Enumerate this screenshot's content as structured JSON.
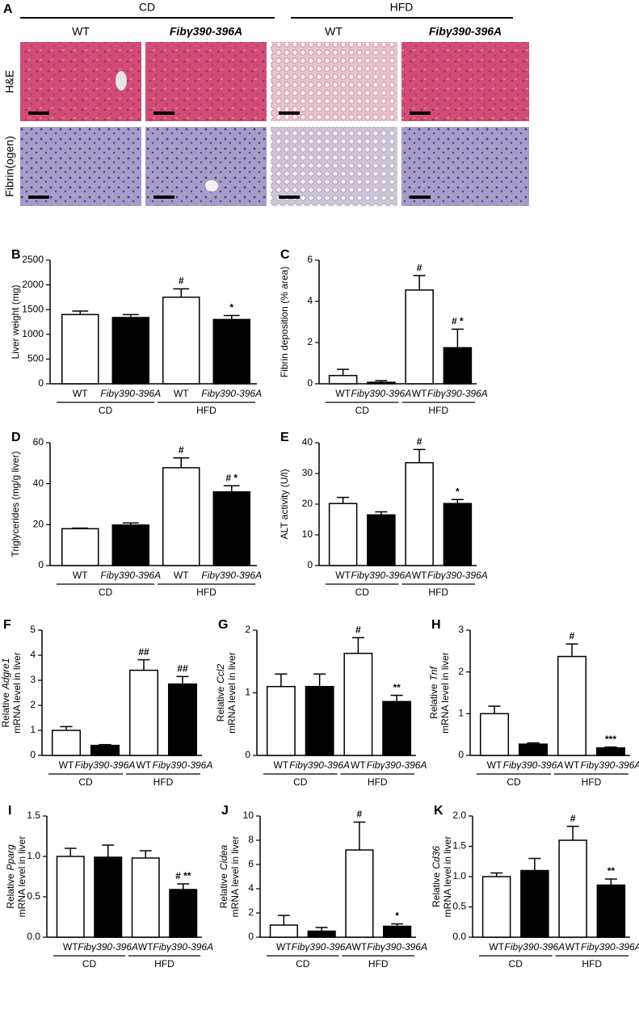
{
  "panel_a": {
    "letter": "A",
    "groups": [
      "CD",
      "HFD"
    ],
    "columns": [
      "WT",
      "Fibγ390-396A",
      "WT",
      "Fibγ390-396A"
    ],
    "rows": [
      "H&E",
      "Fibrin(ogen)"
    ]
  },
  "chart_data": [
    {
      "type": "bar",
      "panel": "B",
      "ylabel": "Liver weight (mg)",
      "categories": [
        "WT",
        "Fibγ390-396A",
        "WT",
        "Fibγ390-396A"
      ],
      "groups": [
        "CD",
        "HFD"
      ],
      "values": [
        1400,
        1340,
        1750,
        1300
      ],
      "errors": [
        70,
        60,
        170,
        80
      ],
      "annotations": [
        null,
        null,
        "#",
        "*"
      ],
      "colors": [
        "#ffffff",
        "#000000",
        "#ffffff",
        "#000000"
      ],
      "ylim": [
        0,
        2500
      ],
      "yticks": [
        0,
        500,
        1000,
        1500,
        2000,
        2500
      ]
    },
    {
      "type": "bar",
      "panel": "C",
      "ylabel": "Fibrin deposition (% area)",
      "categories": [
        "WT",
        "Fibγ390-396A",
        "WT",
        "Fibγ390-396A"
      ],
      "groups": [
        "CD",
        "HFD"
      ],
      "values": [
        0.4,
        0.07,
        4.55,
        1.75
      ],
      "errors": [
        0.3,
        0.08,
        0.7,
        0.9
      ],
      "annotations": [
        null,
        null,
        "#",
        "# *"
      ],
      "colors": [
        "#ffffff",
        "#000000",
        "#ffffff",
        "#000000"
      ],
      "ylim": [
        0,
        6
      ],
      "yticks": [
        0,
        2,
        4,
        6
      ]
    },
    {
      "type": "bar",
      "panel": "D",
      "ylabel": "Triglycerides (mg/g liver)",
      "categories": [
        "WT",
        "Fibγ390-396A",
        "WT",
        "Fibγ390-396A"
      ],
      "groups": [
        "CD",
        "HFD"
      ],
      "values": [
        18,
        19.8,
        47.8,
        36
      ],
      "errors": [
        0.3,
        1,
        4.8,
        3
      ],
      "annotations": [
        null,
        null,
        "#",
        "# *"
      ],
      "colors": [
        "#ffffff",
        "#000000",
        "#ffffff",
        "#000000"
      ],
      "ylim": [
        0,
        60
      ],
      "yticks": [
        0,
        20,
        40,
        60
      ]
    },
    {
      "type": "bar",
      "panel": "E",
      "ylabel": "ALT activity (U/l)",
      "categories": [
        "WT",
        "Fibγ390-396A",
        "WT",
        "Fibγ390-396A"
      ],
      "groups": [
        "CD",
        "HFD"
      ],
      "values": [
        20.2,
        16.5,
        33.5,
        20.2
      ],
      "errors": [
        2,
        1,
        4.3,
        1.3
      ],
      "annotations": [
        null,
        null,
        "#",
        "*"
      ],
      "colors": [
        "#ffffff",
        "#000000",
        "#ffffff",
        "#000000"
      ],
      "ylim": [
        0,
        40
      ],
      "yticks": [
        0,
        10,
        20,
        30,
        40
      ]
    },
    {
      "type": "bar",
      "panel": "F",
      "ylabel": "Relative",
      "ylabel_gene": "Adgre1",
      "ylabel_2": "mRNA level in liver",
      "categories": [
        "WT",
        "Fibγ390-396A",
        "WT",
        "Fibγ390-396A"
      ],
      "groups": [
        "CD",
        "HFD"
      ],
      "values": [
        1.0,
        0.4,
        3.4,
        2.85
      ],
      "errors": [
        0.15,
        0.03,
        0.42,
        0.3
      ],
      "annotations": [
        null,
        null,
        "##",
        "##"
      ],
      "colors": [
        "#ffffff",
        "#000000",
        "#ffffff",
        "#000000"
      ],
      "ylim": [
        0,
        5
      ],
      "yticks": [
        0,
        1,
        2,
        3,
        4,
        5
      ]
    },
    {
      "type": "bar",
      "panel": "G",
      "ylabel": "Relative",
      "ylabel_gene": "Ccl2",
      "ylabel_2": "mRNA level in liver",
      "categories": [
        "WT",
        "Fibγ390-396A",
        "WT",
        "Fibγ390-396A"
      ],
      "groups": [
        "CD",
        "HFD"
      ],
      "values": [
        1.1,
        1.1,
        1.63,
        0.86
      ],
      "errors": [
        0.2,
        0.2,
        0.25,
        0.1
      ],
      "annotations": [
        null,
        null,
        "#",
        "**"
      ],
      "colors": [
        "#ffffff",
        "#000000",
        "#ffffff",
        "#000000"
      ],
      "ylim": [
        0,
        2
      ],
      "yticks": [
        0,
        1,
        2
      ]
    },
    {
      "type": "bar",
      "panel": "H",
      "ylabel": "Relative",
      "ylabel_gene": "Tnf",
      "ylabel_2": "mRNA level in liver",
      "categories": [
        "WT",
        "Fibγ390-396A",
        "WT",
        "Fibγ390-396A"
      ],
      "groups": [
        "CD",
        "HFD"
      ],
      "values": [
        1.0,
        0.27,
        2.37,
        0.18
      ],
      "errors": [
        0.18,
        0.03,
        0.3,
        0.02
      ],
      "annotations": [
        null,
        null,
        "#",
        "***"
      ],
      "colors": [
        "#ffffff",
        "#000000",
        "#ffffff",
        "#000000"
      ],
      "ylim": [
        0,
        3
      ],
      "yticks": [
        0,
        1,
        2,
        3
      ]
    },
    {
      "type": "bar",
      "panel": "I",
      "ylabel": "Relative",
      "ylabel_gene": "Pparg",
      "ylabel_2": "mRNA level in liver",
      "categories": [
        "WT",
        "Fibγ390-396A",
        "WT",
        "Fibγ390-396A"
      ],
      "groups": [
        "CD",
        "HFD"
      ],
      "values": [
        1.0,
        0.99,
        0.98,
        0.59
      ],
      "errors": [
        0.1,
        0.15,
        0.09,
        0.07
      ],
      "annotations": [
        null,
        null,
        null,
        "# **"
      ],
      "colors": [
        "#ffffff",
        "#000000",
        "#ffffff",
        "#000000"
      ],
      "ylim": [
        0,
        1.5
      ],
      "yticks": [
        {
          "value": 0,
          "label": "0.0"
        },
        0.5,
        {
          "value": 1,
          "label": "1.0"
        },
        1.5
      ]
    },
    {
      "type": "bar",
      "panel": "J",
      "ylabel": "Relative",
      "ylabel_gene": "Cidea",
      "ylabel_2": "mRNA level in liver",
      "categories": [
        "WT",
        "Fibγ390-396A",
        "WT",
        "Fibγ390-396A"
      ],
      "groups": [
        "CD",
        "HFD"
      ],
      "values": [
        1.0,
        0.5,
        7.2,
        0.9
      ],
      "errors": [
        0.8,
        0.3,
        2.3,
        0.2
      ],
      "annotations": [
        null,
        null,
        "#",
        "*"
      ],
      "colors": [
        "#ffffff",
        "#000000",
        "#ffffff",
        "#000000"
      ],
      "ylim": [
        0,
        10
      ],
      "yticks": [
        0,
        2,
        4,
        6,
        8,
        10
      ]
    },
    {
      "type": "bar",
      "panel": "K",
      "ylabel": "Relative",
      "ylabel_gene": "Cd36",
      "ylabel_2": "mRNA level in liver",
      "categories": [
        "WT",
        "Fibγ390-396A",
        "WT",
        "Fibγ390-396A"
      ],
      "groups": [
        "CD",
        "HFD"
      ],
      "values": [
        1.0,
        1.1,
        1.6,
        0.86
      ],
      "errors": [
        0.06,
        0.2,
        0.23,
        0.1
      ],
      "annotations": [
        null,
        null,
        "#",
        "**"
      ],
      "colors": [
        "#ffffff",
        "#000000",
        "#ffffff",
        "#000000"
      ],
      "ylim": [
        0,
        2
      ],
      "yticks": [
        {
          "value": 0,
          "label": "0.0"
        },
        0.5,
        {
          "value": 1,
          "label": "1.0"
        },
        1.5,
        {
          "value": 2,
          "label": "2.0"
        }
      ]
    }
  ]
}
